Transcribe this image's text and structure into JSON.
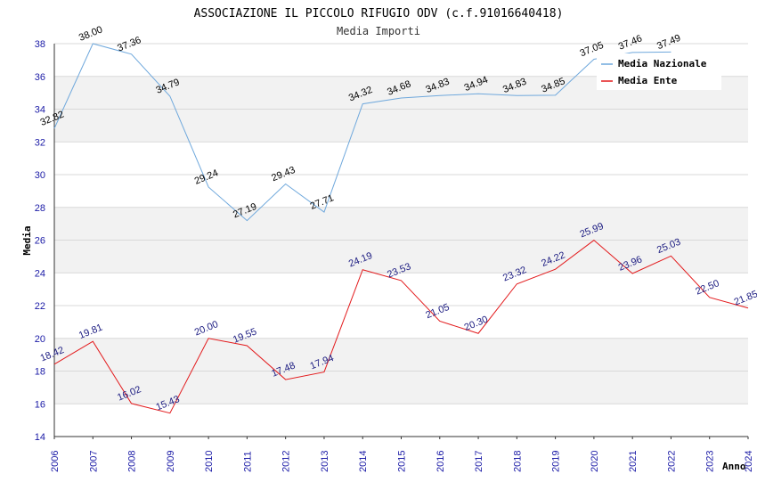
{
  "chart_data": {
    "type": "line",
    "title": "ASSOCIAZIONE IL PICCOLO RIFUGIO ODV (c.f.91016640418)",
    "subtitle": "Media Importi",
    "xlabel": "Anno",
    "ylabel": "Media",
    "ylim": [
      14,
      38
    ],
    "yticks": [
      "14",
      "16",
      "18",
      "20",
      "22",
      "24",
      "26",
      "28",
      "30",
      "32",
      "34",
      "36",
      "38"
    ],
    "categories": [
      "2006",
      "2007",
      "2008",
      "2009",
      "2010",
      "2011",
      "2012",
      "2013",
      "2014",
      "2015",
      "2016",
      "2017",
      "2018",
      "2019",
      "2020",
      "2021",
      "2022",
      "2023",
      "2024"
    ],
    "series": [
      {
        "name": "Media Nazionale",
        "color": "#6fa8dc",
        "values": [
          32.82,
          38.0,
          37.36,
          34.79,
          29.24,
          27.19,
          29.43,
          27.71,
          34.32,
          34.68,
          34.83,
          34.94,
          34.83,
          34.85,
          37.05,
          37.46,
          37.49,
          null,
          null
        ],
        "labels": [
          "32.82",
          "38.00",
          "37.36",
          "34.79",
          "29.24",
          "27.19",
          "29.43",
          "27.71",
          "34.32",
          "34.68",
          "34.83",
          "34.94",
          "34.83",
          "34.85",
          "37.05",
          "37.46",
          "37.49",
          "",
          ""
        ]
      },
      {
        "name": "Media Ente",
        "color": "#e31a1c",
        "values": [
          18.42,
          19.81,
          16.02,
          15.43,
          20.0,
          19.55,
          17.48,
          17.94,
          24.19,
          23.53,
          21.05,
          20.3,
          23.32,
          24.22,
          25.99,
          23.96,
          25.03,
          22.5,
          21.85
        ],
        "labels": [
          "18.42",
          "19.81",
          "16.02",
          "15.43",
          "20.00",
          "19.55",
          "17.48",
          "17.94",
          "24.19",
          "23.53",
          "21.05",
          "20.30",
          "23.32",
          "24.22",
          "25.99",
          "23.96",
          "25.03",
          "22.50",
          "21.85"
        ]
      }
    ],
    "grid": true,
    "legend": "top-right"
  }
}
